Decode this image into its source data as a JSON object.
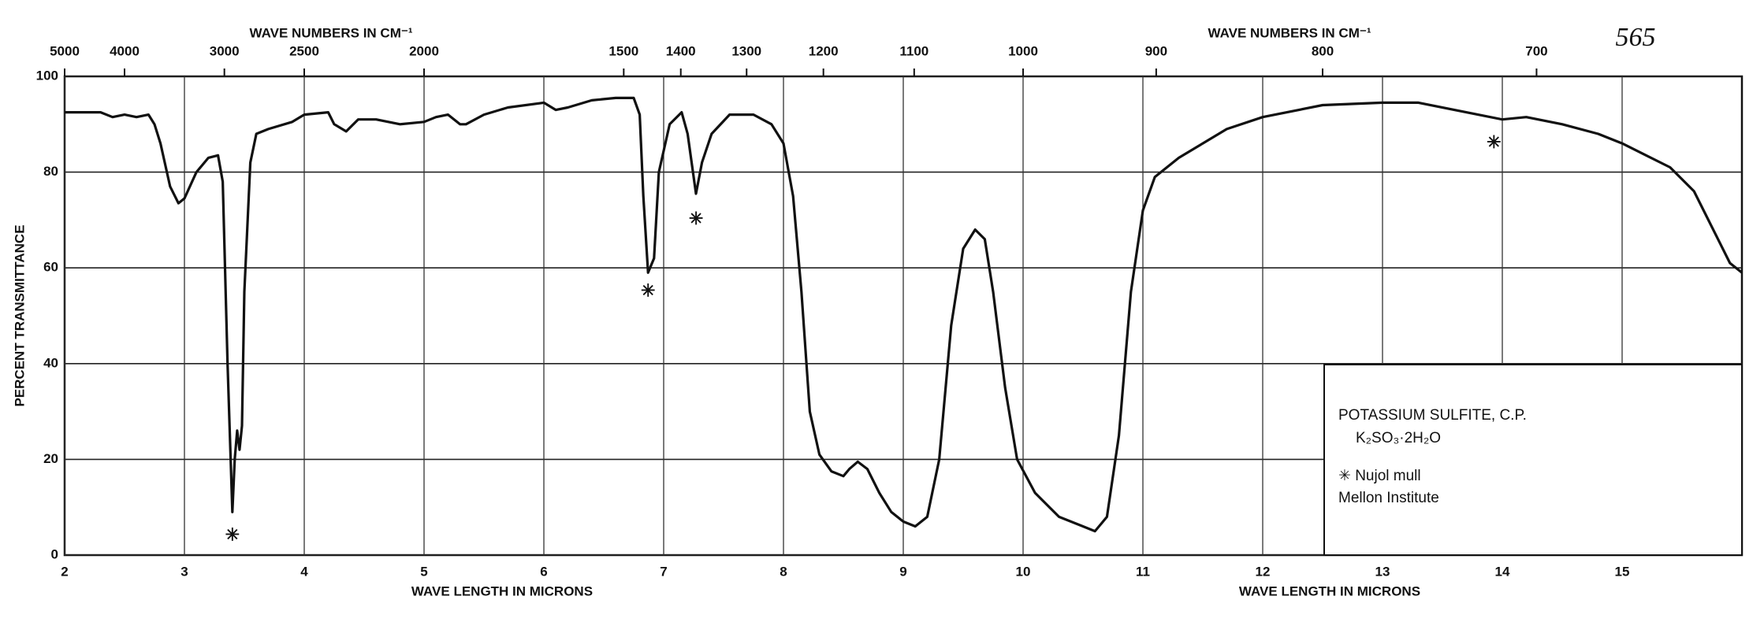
{
  "chart_data": {
    "type": "line",
    "id_number": "565",
    "x_label": "WAVE LENGTH IN MICRONS",
    "x2_label": "WAVE NUMBERS IN CM⁻¹",
    "y_label": "PERCENT TRANSMITTANCE",
    "xlim": [
      2,
      16
    ],
    "ylim": [
      0,
      100
    ],
    "xticks": [
      2,
      3,
      4,
      5,
      6,
      7,
      8,
      9,
      10,
      11,
      12,
      13,
      14,
      15
    ],
    "yticks": [
      0,
      20,
      40,
      60,
      80,
      100
    ],
    "x2ticks": [
      5000,
      4000,
      3000,
      2500,
      2000,
      1500,
      1400,
      1300,
      1200,
      1100,
      1000,
      900,
      800,
      700
    ],
    "grid": true,
    "color": "#111111",
    "legend_lines": [
      "POTASSIUM SULFITE, C.P.",
      "K₂SO₃·2H₂O",
      "✳ Nujol mull",
      "Mellon Institute"
    ],
    "annotations": [
      {
        "x": 3.4,
        "y": 4,
        "label": "✳"
      },
      {
        "x": 6.87,
        "y": 55,
        "label": "✳"
      },
      {
        "x": 7.27,
        "y": 70,
        "label": "✳"
      },
      {
        "x": 13.93,
        "y": 86,
        "label": "✳"
      }
    ],
    "x": [
      2.0,
      2.3,
      2.4,
      2.5,
      2.6,
      2.7,
      2.75,
      2.8,
      2.88,
      2.95,
      3.0,
      3.1,
      3.2,
      3.28,
      3.32,
      3.36,
      3.4,
      3.42,
      3.44,
      3.46,
      3.48,
      3.5,
      3.55,
      3.6,
      3.7,
      3.9,
      4.0,
      4.2,
      4.25,
      4.35,
      4.45,
      4.6,
      4.8,
      5.0,
      5.1,
      5.2,
      5.3,
      5.35,
      5.5,
      5.7,
      6.0,
      6.1,
      6.2,
      6.4,
      6.6,
      6.75,
      6.8,
      6.83,
      6.87,
      6.92,
      6.96,
      7.05,
      7.15,
      7.2,
      7.27,
      7.32,
      7.4,
      7.55,
      7.75,
      7.9,
      8.0,
      8.08,
      8.15,
      8.22,
      8.3,
      8.4,
      8.5,
      8.55,
      8.62,
      8.7,
      8.8,
      8.9,
      9.0,
      9.1,
      9.2,
      9.3,
      9.4,
      9.5,
      9.6,
      9.68,
      9.75,
      9.85,
      9.95,
      10.1,
      10.3,
      10.5,
      10.6,
      10.7,
      10.8,
      10.9,
      11.0,
      11.1,
      11.3,
      11.5,
      11.7,
      12.0,
      12.5,
      13.0,
      13.3,
      13.6,
      14.0,
      14.2,
      14.5,
      14.8,
      15.0,
      15.2,
      15.4,
      15.6,
      15.8,
      15.9,
      16.0
    ],
    "values": [
      92.5,
      92.5,
      91.5,
      92,
      91.5,
      92,
      90,
      86,
      77,
      73.5,
      74.5,
      80,
      83,
      83.5,
      78,
      40,
      9,
      20,
      26,
      22,
      27,
      55,
      82,
      88,
      89,
      90.5,
      92,
      92.5,
      90,
      88.5,
      91,
      91,
      90,
      90.5,
      91.5,
      92,
      90,
      90,
      92,
      93.5,
      94.5,
      93,
      93.5,
      95,
      95.5,
      95.5,
      92,
      75,
      59,
      62,
      80,
      90,
      92.5,
      88,
      75.5,
      82,
      88,
      92,
      92,
      90,
      86,
      75,
      55,
      30,
      21,
      17.5,
      16.5,
      18,
      19.5,
      18,
      13,
      9,
      7,
      6,
      8,
      20,
      48,
      64,
      68,
      66,
      55,
      35,
      20,
      13,
      8,
      6,
      5,
      8,
      25,
      55,
      72,
      79,
      83,
      86,
      89,
      91.5,
      94,
      94.5,
      94.5,
      93,
      91,
      91.5,
      90,
      88,
      86,
      83.5,
      81,
      76,
      66,
      61,
      59
    ]
  }
}
